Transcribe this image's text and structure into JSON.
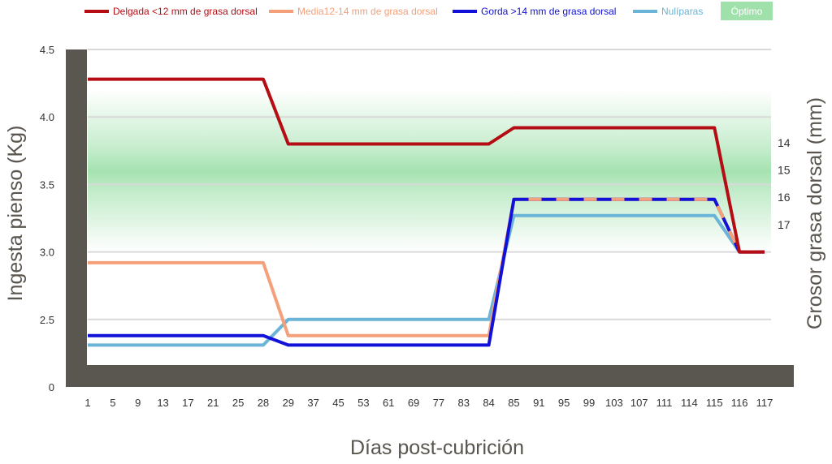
{
  "chart_data": {
    "type": "line",
    "xlabel": "Días post-cubrición",
    "ylabel": "Ingesta pienso (Kg)",
    "ylabel_right": "Grosor grasa dorsal (mm)",
    "ylim": [
      0,
      4.5
    ],
    "yticks": [
      "0",
      "2.5",
      "3.0",
      "3.5",
      "4.0",
      "4.5"
    ],
    "right_ticks": [
      "14",
      "15",
      "16",
      "17"
    ],
    "categories": [
      "1",
      "5",
      "9",
      "13",
      "17",
      "21",
      "25",
      "28",
      "29",
      "37",
      "45",
      "53",
      "61",
      "69",
      "77",
      "83",
      "84",
      "85",
      "91",
      "95",
      "99",
      "103",
      "107",
      "111",
      "114",
      "115",
      "116",
      "117"
    ],
    "optimum_band": {
      "label": "Óptimo",
      "from": 3.0,
      "to": 4.2,
      "core_from": 3.27,
      "core_to": 3.7,
      "color": "#7fd68f"
    },
    "grid": true,
    "legend_position": "top",
    "series": [
      {
        "name": "Delgada <12 mm de grasa dorsal",
        "color": "#b40e14",
        "dashed": false,
        "values": [
          4.28,
          4.28,
          4.28,
          4.28,
          4.28,
          4.28,
          4.28,
          4.28,
          3.8,
          3.8,
          3.8,
          3.8,
          3.8,
          3.8,
          3.8,
          3.8,
          3.8,
          3.92,
          3.92,
          3.92,
          3.92,
          3.92,
          3.92,
          3.92,
          3.92,
          3.92,
          3.0,
          3.0
        ]
      },
      {
        "name": "Media12-14 mm de grasa dorsal",
        "color": "#f4a07a",
        "dashed": false,
        "values": [
          2.92,
          2.92,
          2.92,
          2.92,
          2.92,
          2.92,
          2.92,
          2.92,
          2.38,
          2.38,
          2.38,
          2.38,
          2.38,
          2.38,
          2.38,
          2.38,
          2.38,
          3.39,
          3.39,
          3.39,
          3.39,
          3.39,
          3.39,
          3.39,
          3.39,
          3.39,
          3.0,
          3.0
        ]
      },
      {
        "name": "Gorda >14 mm de grasa dorsal",
        "color": "#1111d8",
        "dashed": true,
        "values": [
          2.38,
          2.38,
          2.38,
          2.38,
          2.38,
          2.38,
          2.38,
          2.38,
          2.31,
          2.31,
          2.31,
          2.31,
          2.31,
          2.31,
          2.31,
          2.31,
          2.31,
          3.39,
          3.39,
          3.39,
          3.39,
          3.39,
          3.39,
          3.39,
          3.39,
          3.39,
          3.0,
          3.0
        ]
      },
      {
        "name": "Nulíparas",
        "color": "#6ab4d8",
        "dashed": false,
        "values": [
          2.31,
          2.31,
          2.31,
          2.31,
          2.31,
          2.31,
          2.31,
          2.31,
          2.5,
          2.5,
          2.5,
          2.5,
          2.5,
          2.5,
          2.5,
          2.5,
          2.5,
          3.27,
          3.27,
          3.27,
          3.27,
          3.27,
          3.27,
          3.27,
          3.27,
          3.27,
          3.0,
          null
        ]
      }
    ]
  }
}
